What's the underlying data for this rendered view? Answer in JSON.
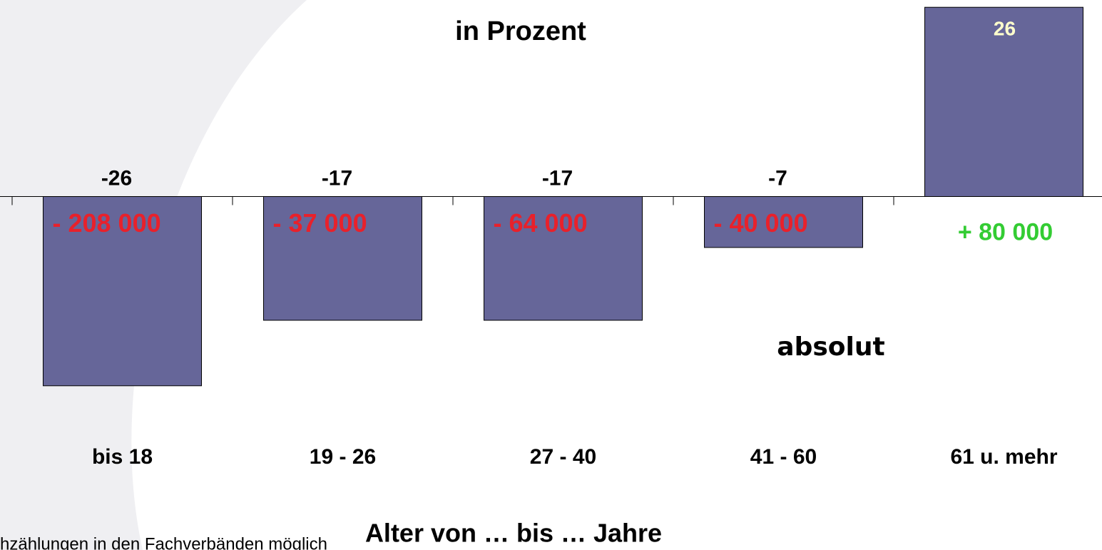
{
  "chart_data": {
    "type": "bar",
    "title": "in Prozent",
    "x_label": "Alter von … bis … Jahre",
    "annotation": "absolut",
    "note": "hzählungen in den Fachverbänden möglich",
    "categories": [
      "bis 18",
      "19 - 26",
      "27 - 40",
      "41 - 60",
      "61 u. mehr"
    ],
    "values": [
      -26,
      -17,
      -17,
      -7,
      26
    ],
    "color": "#666699",
    "absolute_labels": [
      "- 208 000",
      "- 37 000",
      "- 64 000",
      "- 40 000",
      "+ 80 000"
    ],
    "absolute_label_colors": [
      "#e8212b",
      "#e8212b",
      "#e8212b",
      "#e8212b",
      "#33cc33"
    ],
    "ylim": [
      -27,
      27
    ]
  }
}
